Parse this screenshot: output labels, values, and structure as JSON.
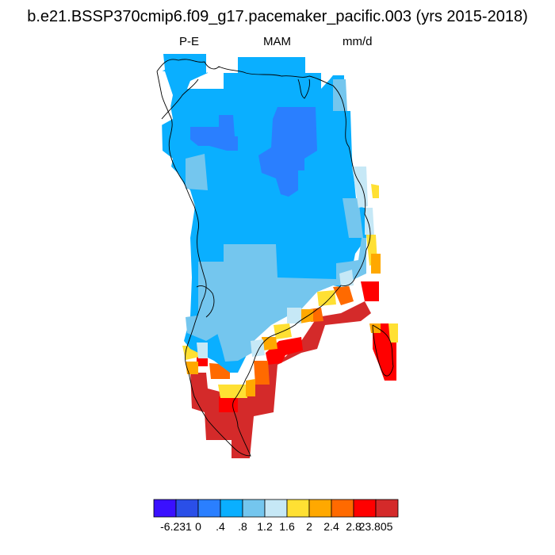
{
  "title": "b.e21.BSSP370cmip6.f09_g17.pacemaker_pacific.003 (yrs 2015-2018)",
  "subtitle": {
    "left": "P-E",
    "center": "MAM",
    "right": "mm/d"
  },
  "legend": {
    "colors": [
      "#3a10ff",
      "#2a4fe8",
      "#2a7fff",
      "#0aafff",
      "#74c6ee",
      "#c6e8f6",
      "#ffe033",
      "#ffa800",
      "#ff6a00",
      "#ff0000",
      "#d42a2a"
    ],
    "tick_labels": [
      "-6.231",
      "0",
      ".4",
      ".8",
      "1.2",
      "1.6",
      "2",
      "2.4",
      "2.8",
      "23.805"
    ]
  },
  "map_colors": {
    "ocean_bg": "#ffffff",
    "coast": "#000000"
  }
}
